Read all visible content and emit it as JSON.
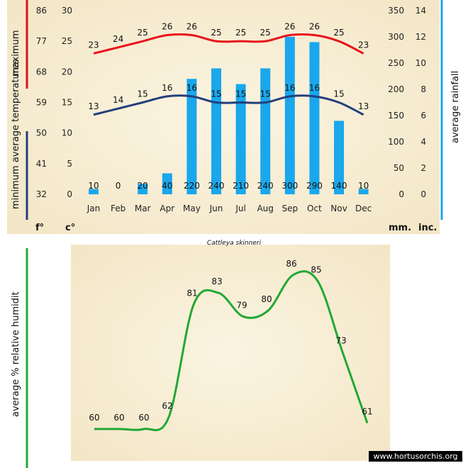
{
  "climate": {
    "months": [
      "Jan",
      "Feb",
      "Mar",
      "Apr",
      "May",
      "Jun",
      "Jul",
      "Aug",
      "Sep",
      "Oct",
      "Nov",
      "Dec"
    ],
    "max_temp_c": [
      23,
      24,
      25,
      26,
      26,
      25,
      25,
      25,
      26,
      26,
      25,
      23
    ],
    "min_temp_c": [
      13,
      14,
      15,
      16,
      16,
      15,
      15,
      15,
      16,
      16,
      15,
      13
    ],
    "rainfall_mm": [
      10,
      0,
      20,
      40,
      220,
      240,
      210,
      240,
      300,
      290,
      140,
      10
    ],
    "axis_f_ticks": [
      "86",
      "77",
      "68",
      "59",
      "50",
      "41",
      "32"
    ],
    "axis_c_ticks": [
      "30",
      "25",
      "20",
      "15",
      "10",
      "5",
      "0"
    ],
    "axis_mm_ticks": [
      "350",
      "300",
      "250",
      "200",
      "150",
      "100",
      "50",
      "0"
    ],
    "axis_inch_ticks": [
      "14",
      "12",
      "10",
      "8",
      "6",
      "4",
      "2",
      "0"
    ],
    "ylabel_left_top": "maximum",
    "ylabel_left_bottom": "minimum average temperatures",
    "ylabel_right": "average rainfall",
    "unit_f": "f°",
    "unit_c": "c°",
    "unit_mm": "mm.",
    "unit_inch": "inc.",
    "colors": {
      "max": "#e8141b",
      "min": "#233f7c",
      "rain": "#1aa7ec"
    }
  },
  "species": "Cattleya skinneri",
  "humidity": {
    "values": [
      60,
      60,
      60,
      62,
      81,
      83,
      79,
      80,
      86,
      85,
      73,
      61
    ],
    "ylabel": "average % relative humidit",
    "color": "#22a834"
  },
  "watermark": "www.hortusorchis.org"
}
